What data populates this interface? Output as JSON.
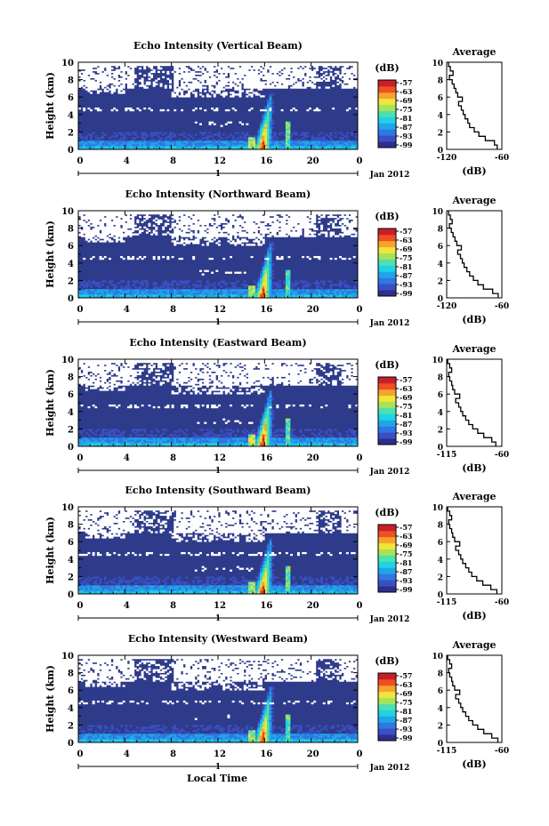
{
  "figure": {
    "xlabel": "Local Time",
    "date_label": "Jan 2012",
    "day_label": "1",
    "cbar_unit": "(dB)",
    "profile_title": "Average",
    "profile_xlabel": "(dB)",
    "ylabel": "Height (km)"
  },
  "colors": {
    "background_level": "#2e3b8a",
    "colormap": [
      "#2d2f8e",
      "#3a4fc4",
      "#2f78e3",
      "#1fa6e8",
      "#20d2e6",
      "#4de0b0",
      "#a6e35a",
      "#f2e43a",
      "#f7a32b",
      "#ee4f23",
      "#c71f2a"
    ]
  },
  "chart_data": [
    {
      "type": "heatmap",
      "title": "Echo Intensity (Vertical Beam)",
      "ylabel": "Height (km)",
      "xlabel": "",
      "x_ticks": [
        "0",
        "4",
        "8",
        "12",
        "16",
        "20",
        "0"
      ],
      "y_ticks": [
        "0",
        "2",
        "4",
        "6",
        "8",
        "10"
      ],
      "xlim": [
        0,
        24
      ],
      "ylim": [
        0,
        10
      ],
      "colorbar": {
        "label": "(dB)",
        "ticks": [
          "-57",
          "-63",
          "-69",
          "-75",
          "-81",
          "-87",
          "-93",
          "-99"
        ],
        "range": [
          -99,
          -57
        ]
      },
      "profile": {
        "type": "line",
        "title": "Average",
        "xlabel": "(dB)",
        "x_ticks": [
          "-120",
          "-60"
        ],
        "xlim": [
          -120,
          -60
        ],
        "heights": [
          0.0,
          0.5,
          1.0,
          1.5,
          2.0,
          2.5,
          3.0,
          3.5,
          4.0,
          4.5,
          5.0,
          5.5,
          6.0,
          6.5,
          7.0,
          7.5,
          8.0,
          8.5,
          9.0,
          9.5
        ],
        "values": [
          -65,
          -68,
          -78,
          -85,
          -90,
          -95,
          -97,
          -100,
          -102,
          -104,
          -107,
          -103,
          -108,
          -110,
          -112,
          -114,
          -117,
          -113,
          -116,
          -118
        ]
      }
    },
    {
      "type": "heatmap",
      "title": "Echo Intensity (Northward Beam)",
      "ylabel": "Height (km)",
      "xlabel": "",
      "x_ticks": [
        "0",
        "4",
        "8",
        "12",
        "16",
        "20",
        "0"
      ],
      "y_ticks": [
        "0",
        "2",
        "4",
        "6",
        "8",
        "10"
      ],
      "xlim": [
        0,
        24
      ],
      "ylim": [
        0,
        10
      ],
      "colorbar": {
        "label": "(dB)",
        "ticks": [
          "-57",
          "-63",
          "-69",
          "-75",
          "-81",
          "-87",
          "-93",
          "-99"
        ],
        "range": [
          -99,
          -57
        ]
      },
      "profile": {
        "type": "line",
        "title": "Average",
        "xlabel": "(dB)",
        "x_ticks": [
          "-120",
          "-60"
        ],
        "xlim": [
          -120,
          -60
        ],
        "heights": [
          0.0,
          0.5,
          1.0,
          1.5,
          2.0,
          2.5,
          3.0,
          3.5,
          4.0,
          4.5,
          5.0,
          5.5,
          6.0,
          6.5,
          7.0,
          7.5,
          8.0,
          8.5,
          9.0,
          9.5
        ],
        "values": [
          -64,
          -70,
          -80,
          -86,
          -91,
          -95,
          -98,
          -101,
          -103,
          -105,
          -108,
          -104,
          -109,
          -111,
          -113,
          -115,
          -117,
          -114,
          -116,
          -118
        ]
      }
    },
    {
      "type": "heatmap",
      "title": "Echo Intensity (Eastward Beam)",
      "ylabel": "Height (km)",
      "xlabel": "",
      "x_ticks": [
        "0",
        "4",
        "8",
        "12",
        "16",
        "20",
        "0"
      ],
      "y_ticks": [
        "0",
        "2",
        "4",
        "6",
        "8",
        "10"
      ],
      "xlim": [
        0,
        24
      ],
      "ylim": [
        0,
        10
      ],
      "colorbar": {
        "label": "(dB)",
        "ticks": [
          "-57",
          "-63",
          "-69",
          "-75",
          "-81",
          "-87",
          "-93",
          "-99"
        ],
        "range": [
          -99,
          -57
        ]
      },
      "profile": {
        "type": "line",
        "title": "Average",
        "xlabel": "(dB)",
        "x_ticks": [
          "-115",
          "-60"
        ],
        "xlim": [
          -115,
          -60
        ],
        "heights": [
          0.0,
          0.5,
          1.0,
          1.5,
          2.0,
          2.5,
          3.0,
          3.5,
          4.0,
          4.5,
          5.0,
          5.5,
          6.0,
          6.5,
          7.0,
          7.5,
          8.0,
          8.5,
          9.0,
          9.5
        ],
        "values": [
          -66,
          -70,
          -78,
          -84,
          -89,
          -93,
          -96,
          -99,
          -101,
          -103,
          -106,
          -102,
          -107,
          -109,
          -110,
          -112,
          -113,
          -110,
          -112,
          -114
        ]
      }
    },
    {
      "type": "heatmap",
      "title": "Echo Intensity (Southward Beam)",
      "ylabel": "Height (km)",
      "xlabel": "",
      "x_ticks": [
        "0",
        "4",
        "8",
        "12",
        "16",
        "20",
        "0"
      ],
      "y_ticks": [
        "0",
        "2",
        "4",
        "6",
        "8",
        "10"
      ],
      "xlim": [
        0,
        24
      ],
      "ylim": [
        0,
        10
      ],
      "colorbar": {
        "label": "(dB)",
        "ticks": [
          "-57",
          "-63",
          "-69",
          "-75",
          "-81",
          "-87",
          "-93",
          "-99"
        ],
        "range": [
          -99,
          -57
        ]
      },
      "profile": {
        "type": "line",
        "title": "Average",
        "xlabel": "(dB)",
        "x_ticks": [
          "-115",
          "-60"
        ],
        "xlim": [
          -115,
          -60
        ],
        "heights": [
          0.0,
          0.5,
          1.0,
          1.5,
          2.0,
          2.5,
          3.0,
          3.5,
          4.0,
          4.5,
          5.0,
          5.5,
          6.0,
          6.5,
          7.0,
          7.5,
          8.0,
          8.5,
          9.0,
          9.5
        ],
        "values": [
          -65,
          -71,
          -79,
          -85,
          -90,
          -93,
          -96,
          -99,
          -101,
          -103,
          -106,
          -102,
          -107,
          -109,
          -110,
          -112,
          -113,
          -110,
          -112,
          -114
        ]
      }
    },
    {
      "type": "heatmap",
      "title": "Echo Intensity (Westward Beam)",
      "ylabel": "Height (km)",
      "xlabel": "Local Time",
      "x_ticks": [
        "0",
        "4",
        "8",
        "12",
        "16",
        "20",
        "0"
      ],
      "y_ticks": [
        "0",
        "2",
        "4",
        "6",
        "8",
        "10"
      ],
      "xlim": [
        0,
        24
      ],
      "ylim": [
        0,
        10
      ],
      "colorbar": {
        "label": "(dB)",
        "ticks": [
          "-57",
          "-63",
          "-69",
          "-75",
          "-81",
          "-87",
          "-93",
          "-99"
        ],
        "range": [
          -99,
          -57
        ]
      },
      "profile": {
        "type": "line",
        "title": "Average",
        "xlabel": "(dB)",
        "x_ticks": [
          "-115",
          "-60"
        ],
        "xlim": [
          -115,
          -60
        ],
        "heights": [
          0.0,
          0.5,
          1.0,
          1.5,
          2.0,
          2.5,
          3.0,
          3.5,
          4.0,
          4.5,
          5.0,
          5.5,
          6.0,
          6.5,
          7.0,
          7.5,
          8.0,
          8.5,
          9.0,
          9.5
        ],
        "values": [
          -64,
          -70,
          -78,
          -84,
          -89,
          -93,
          -96,
          -99,
          -101,
          -103,
          -106,
          -102,
          -107,
          -109,
          -110,
          -112,
          -113,
          -110,
          -112,
          -114
        ]
      }
    }
  ]
}
